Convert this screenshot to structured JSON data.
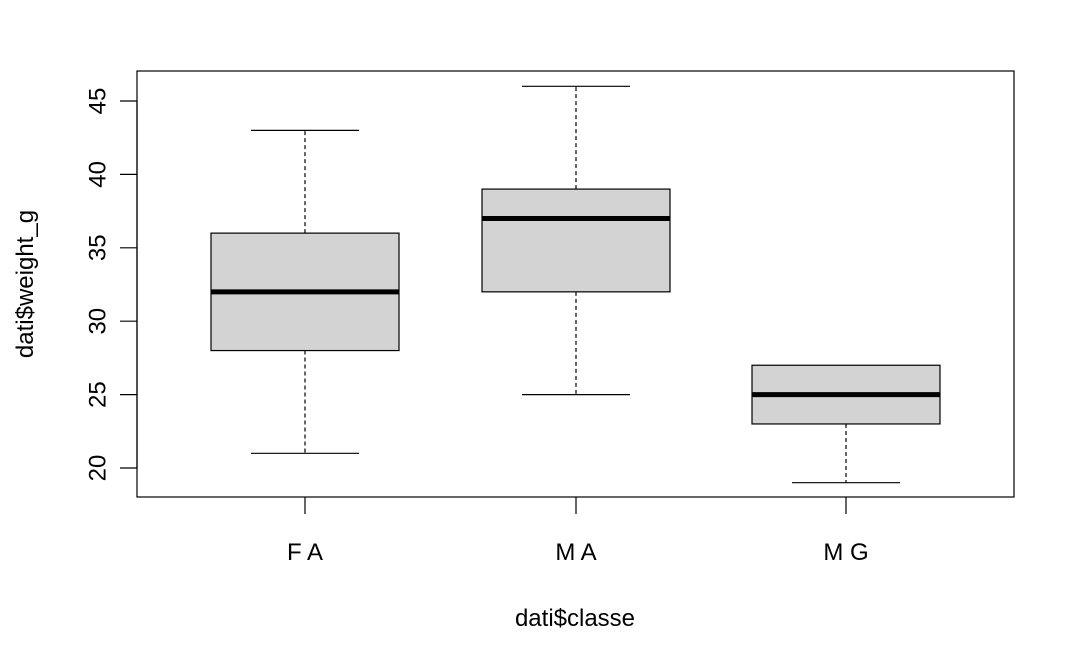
{
  "chart_data": {
    "type": "box",
    "title": "",
    "xlabel": "dati$classe",
    "ylabel": "dati$weight_g",
    "categories": [
      "F A",
      "M A",
      "M G"
    ],
    "boxes": [
      {
        "category": "F A",
        "whisker_low": 21,
        "q1": 28,
        "median": 32,
        "q3": 36,
        "whisker_high": 43
      },
      {
        "category": "M A",
        "whisker_low": 25,
        "q1": 32,
        "median": 37,
        "q3": 39,
        "whisker_high": 46
      },
      {
        "category": "M G",
        "whisker_low": 19,
        "q1": 23,
        "median": 25,
        "q3": 27,
        "whisker_high": 27
      }
    ],
    "y_ticks": [
      20,
      25,
      30,
      35,
      40,
      45
    ],
    "y_tick_labels": [
      "20",
      "25",
      "30",
      "35",
      "40",
      "45"
    ],
    "ylim": [
      18,
      47
    ],
    "box_fill": "#d3d3d3",
    "grid": false,
    "legend": "none"
  }
}
